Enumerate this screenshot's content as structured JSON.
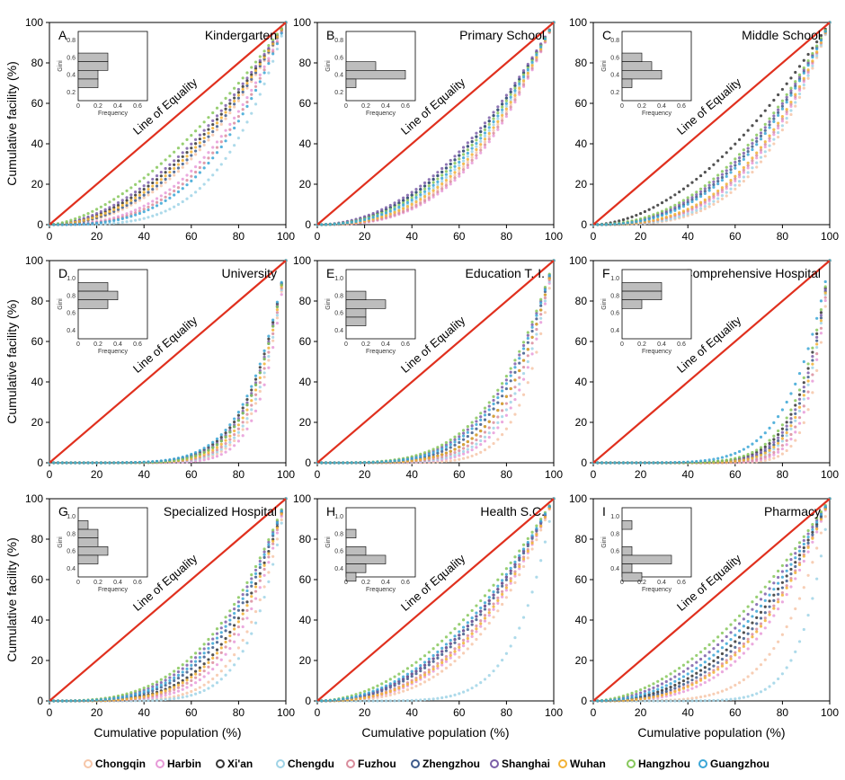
{
  "chart_data": {
    "type": "line",
    "axes": {
      "xlabel": "Cumulative population (%)",
      "ylabel": "Cumulative facility (%)",
      "xlim": [
        0,
        100
      ],
      "ylim": [
        0,
        100
      ],
      "ticks": [
        0,
        20,
        40,
        60,
        80,
        100
      ],
      "tick_labels": [
        "0",
        "20",
        "40",
        "60",
        "80",
        "100"
      ]
    },
    "equality_label": "Line of Equality",
    "equality_color": "#e0301e",
    "legend": [
      {
        "name": "Chongqin",
        "color": "#f6c6a8"
      },
      {
        "name": "Harbin",
        "color": "#e79ad8"
      },
      {
        "name": "Xi'an",
        "color": "#333333"
      },
      {
        "name": "Chengdu",
        "color": "#9fd3e6"
      },
      {
        "name": "Fuzhou",
        "color": "#d98c9c"
      },
      {
        "name": "Zhengzhou",
        "color": "#3d5a8a"
      },
      {
        "name": "Shanghai",
        "color": "#7b5ea8"
      },
      {
        "name": "Wuhan",
        "color": "#f2b134"
      },
      {
        "name": "Hangzhou",
        "color": "#86c75a"
      },
      {
        "name": "Guangzhou",
        "color": "#3aa6d6"
      }
    ],
    "inset": {
      "xlabel": "Frequency",
      "ylabel": "Gini",
      "xticks": [
        "0",
        "0.2",
        "0.4",
        "0.6"
      ],
      "bar_color": "#bdbdbd"
    },
    "panels": [
      {
        "letter": "A",
        "title": "Kindergarten",
        "inset_yticks": [
          "0.8",
          "0.6",
          "0.4",
          "0.2"
        ],
        "inset_ymin": 0.1,
        "inset_ymax": 0.9,
        "inset_bars": [
          {
            "gini": 0.6,
            "freq": 0.3
          },
          {
            "gini": 0.5,
            "freq": 0.3
          },
          {
            "gini": 0.4,
            "freq": 0.2
          },
          {
            "gini": 0.3,
            "freq": 0.2
          }
        ],
        "series_k": [
          2.2,
          2.6,
          1.9,
          3.8,
          2.8,
          2.1,
          1.8,
          2.0,
          1.6,
          3.0
        ]
      },
      {
        "letter": "B",
        "title": "Primary School",
        "inset_yticks": [
          "0.8",
          "0.6",
          "0.4",
          "0.2"
        ],
        "inset_ymin": 0.1,
        "inset_ymax": 0.9,
        "inset_bars": [
          {
            "gini": 0.5,
            "freq": 0.3
          },
          {
            "gini": 0.4,
            "freq": 0.6
          },
          {
            "gini": 0.3,
            "freq": 0.1
          }
        ],
        "series_k": [
          2.6,
          2.8,
          2.1,
          2.4,
          2.7,
          2.1,
          2.0,
          2.5,
          2.2,
          2.3
        ]
      },
      {
        "letter": "C",
        "title": "Middle School",
        "inset_yticks": [
          "0.8",
          "0.6",
          "0.4",
          "0.2"
        ],
        "inset_ymin": 0.1,
        "inset_ymax": 0.9,
        "inset_bars": [
          {
            "gini": 0.6,
            "freq": 0.2
          },
          {
            "gini": 0.5,
            "freq": 0.3
          },
          {
            "gini": 0.4,
            "freq": 0.4
          },
          {
            "gini": 0.3,
            "freq": 0.1
          }
        ],
        "series_k": [
          3.4,
          3.0,
          1.8,
          3.2,
          2.9,
          2.4,
          2.3,
          2.8,
          2.2,
          2.5
        ]
      },
      {
        "letter": "D",
        "title": "University",
        "inset_yticks": [
          "1.0",
          "0.8",
          "0.6",
          "0.4"
        ],
        "inset_ymin": 0.3,
        "inset_ymax": 1.1,
        "inset_bars": [
          {
            "gini": 0.9,
            "freq": 0.3
          },
          {
            "gini": 0.8,
            "freq": 0.4
          },
          {
            "gini": 0.7,
            "freq": 0.3
          }
        ],
        "series_k": [
          9,
          10,
          6.5,
          8.5,
          8,
          7,
          6.8,
          7.5,
          7,
          6.2
        ]
      },
      {
        "letter": "E",
        "title": "Education T. I.",
        "inset_yticks": [
          "1.0",
          "0.8",
          "0.6",
          "0.4"
        ],
        "inset_ymin": 0.3,
        "inset_ymax": 1.1,
        "inset_bars": [
          {
            "gini": 0.8,
            "freq": 0.2
          },
          {
            "gini": 0.7,
            "freq": 0.4
          },
          {
            "gini": 0.6,
            "freq": 0.2
          },
          {
            "gini": 0.5,
            "freq": 0.2
          }
        ],
        "series_k": [
          8,
          6.5,
          5,
          6,
          5.5,
          4.5,
          4,
          5,
          3.8,
          4.2
        ]
      },
      {
        "letter": "F",
        "title": "Comprehensive Hospital",
        "inset_yticks": [
          "1.0",
          "0.8",
          "0.6",
          "0.4"
        ],
        "inset_ymin": 0.3,
        "inset_ymax": 1.1,
        "inset_bars": [
          {
            "gini": 0.9,
            "freq": 0.4
          },
          {
            "gini": 0.8,
            "freq": 0.4
          },
          {
            "gini": 0.7,
            "freq": 0.2
          }
        ],
        "series_k": [
          14,
          12,
          8,
          10,
          11,
          9,
          8.5,
          9.5,
          7.5,
          6
        ]
      },
      {
        "letter": "G",
        "title": "Specialized Hospital",
        "inset_yticks": [
          "1.0",
          "0.8",
          "0.6",
          "0.4"
        ],
        "inset_ymin": 0.3,
        "inset_ymax": 1.1,
        "inset_bars": [
          {
            "gini": 0.9,
            "freq": 0.1
          },
          {
            "gini": 0.8,
            "freq": 0.2
          },
          {
            "gini": 0.7,
            "freq": 0.2
          },
          {
            "gini": 0.6,
            "freq": 0.3
          },
          {
            "gini": 0.5,
            "freq": 0.2
          }
        ],
        "series_k": [
          6,
          5,
          4,
          7,
          4.5,
          3.6,
          3.2,
          4.2,
          3.0,
          3.4
        ]
      },
      {
        "letter": "H",
        "title": "Health S.C.",
        "inset_yticks": [
          "1.0",
          "0.8",
          "0.6",
          "0.4"
        ],
        "inset_ymin": 0.3,
        "inset_ymax": 1.1,
        "inset_bars": [
          {
            "gini": 0.8,
            "freq": 0.1
          },
          {
            "gini": 0.6,
            "freq": 0.2
          },
          {
            "gini": 0.5,
            "freq": 0.4
          },
          {
            "gini": 0.4,
            "freq": 0.2
          },
          {
            "gini": 0.3,
            "freq": 0.1
          }
        ],
        "series_k": [
          3.0,
          2.7,
          2.2,
          6.5,
          2.5,
          2.3,
          2.2,
          2.6,
          1.9,
          2.1
        ]
      },
      {
        "letter": "I",
        "title": "Pharmacy",
        "inset_yticks": [
          "1.0",
          "0.8",
          "0.6",
          "0.4"
        ],
        "inset_ymin": 0.3,
        "inset_ymax": 1.1,
        "inset_bars": [
          {
            "gini": 0.9,
            "freq": 0.1
          },
          {
            "gini": 0.6,
            "freq": 0.1
          },
          {
            "gini": 0.5,
            "freq": 0.5
          },
          {
            "gini": 0.4,
            "freq": 0.1
          },
          {
            "gini": 0.3,
            "freq": 0.2
          }
        ],
        "series_k": [
          5,
          3.2,
          2.4,
          9,
          2.8,
          2.6,
          2.0,
          2.9,
          1.8,
          2.2
        ]
      }
    ]
  }
}
